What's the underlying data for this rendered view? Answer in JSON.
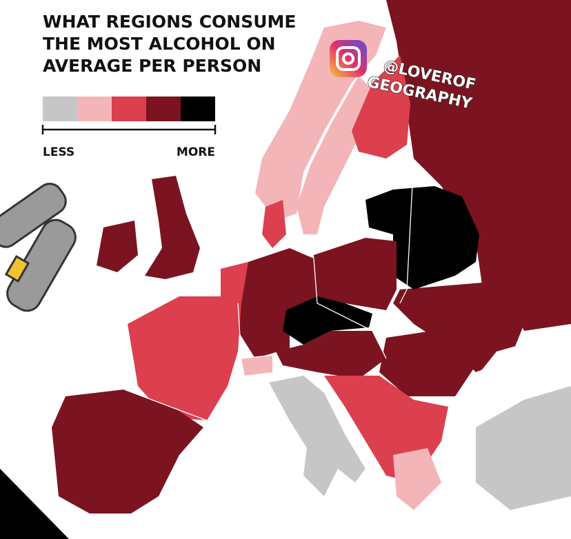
{
  "title_lines": [
    "WHAT REGIONS CONSUME",
    "THE MOST ALCOHOL ON",
    "AVERAGE PER PERSON"
  ],
  "legend": {
    "colors": [
      "#c6c6c6",
      "#f4b5b8",
      "#dc3f4d",
      "#7b1420",
      "#000000"
    ],
    "low_label": "LESS",
    "high_label": "MORE"
  },
  "watermark": [
    "@LOVEROF",
    "GEOGRAPHY"
  ]
}
